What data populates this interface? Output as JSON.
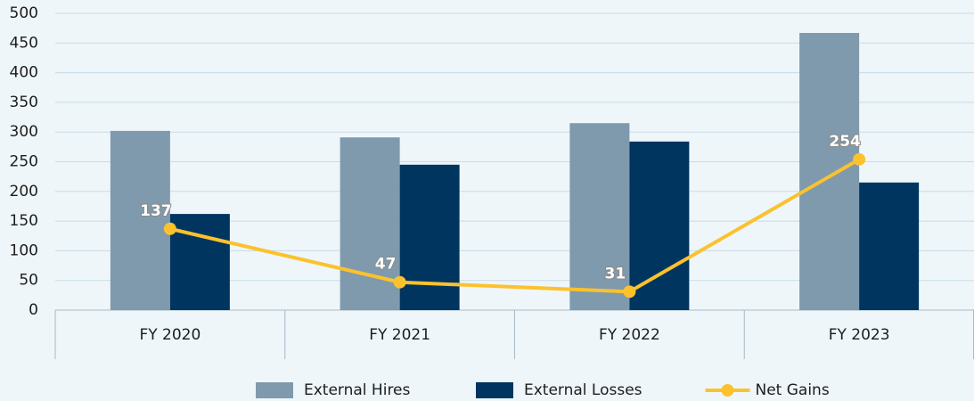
{
  "chart_data": {
    "type": "bar",
    "categories": [
      "FY 2020",
      "FY 2021",
      "FY 2022",
      "FY 2023"
    ],
    "series": [
      {
        "name": "External Hires",
        "color": "#7f9aad",
        "values": [
          302,
          291,
          315,
          467
        ]
      },
      {
        "name": "External Losses",
        "color": "#003560",
        "values": [
          162,
          245,
          284,
          215
        ]
      },
      {
        "name": "Net Gains",
        "color": "#fbc22d",
        "type": "line",
        "values": [
          137,
          47,
          31,
          254
        ]
      }
    ],
    "ylim": [
      0,
      500
    ],
    "yticks": [
      0,
      50,
      100,
      150,
      200,
      250,
      300,
      350,
      400,
      450,
      500
    ],
    "grid": true,
    "legend": "bottom"
  }
}
